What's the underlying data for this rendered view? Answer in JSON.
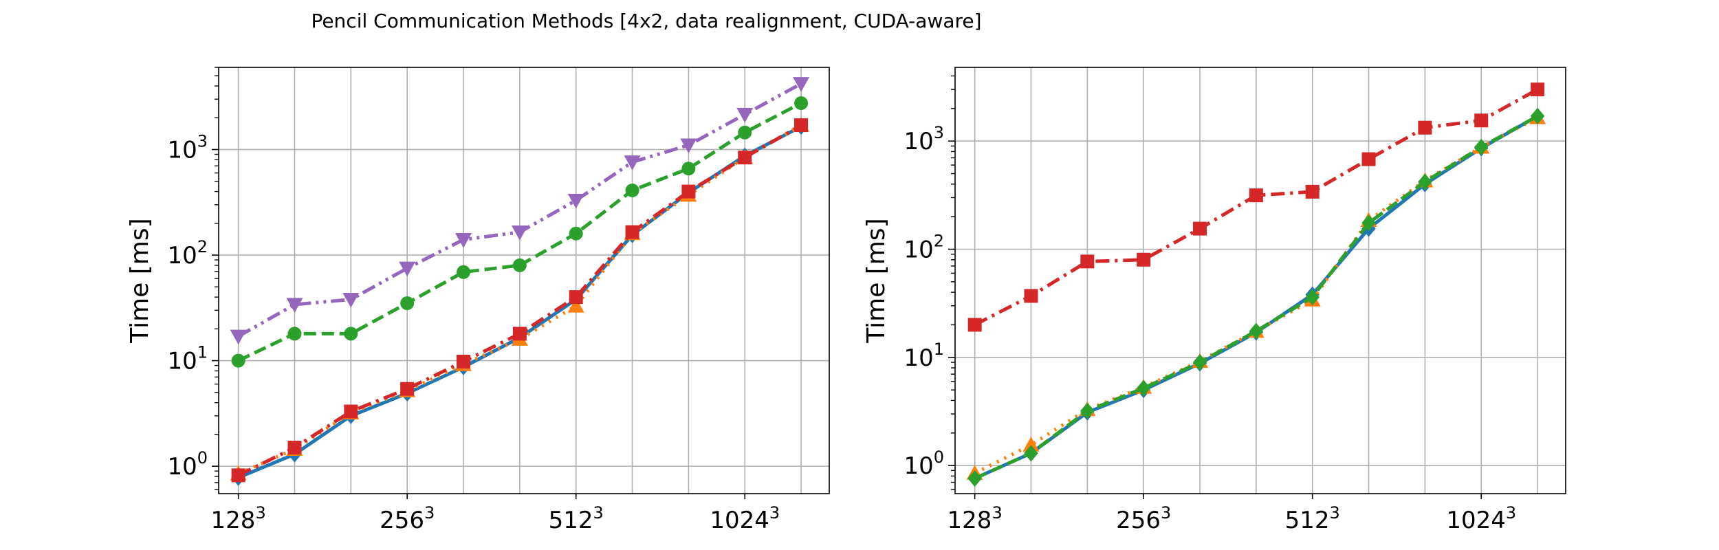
{
  "figure": {
    "title": "Pencil Communication Methods [4x2, data realignment, CUDA-aware]"
  },
  "chart_data": [
    {
      "type": "line",
      "title": "",
      "xlabel": "",
      "ylabel": "Time [ms]",
      "yscale": "log",
      "ylim": [
        0.55,
        6000
      ],
      "xlim": [
        -0.35,
        10.5
      ],
      "grid": true,
      "legend": "none",
      "x_ticks": [
        {
          "pos": 0,
          "base": "128",
          "exp": "3"
        },
        {
          "pos": 3,
          "base": "256",
          "exp": "3"
        },
        {
          "pos": 6,
          "base": "512",
          "exp": "3"
        },
        {
          "pos": 9,
          "base": "1024",
          "exp": "3"
        }
      ],
      "x_grid": [
        0,
        1,
        2,
        3,
        4,
        5,
        6,
        7,
        8,
        9,
        10
      ],
      "y_ticks": [
        {
          "value": 1,
          "base": "10",
          "exp": "0"
        },
        {
          "value": 10,
          "base": "10",
          "exp": "1"
        },
        {
          "value": 100,
          "base": "10",
          "exp": "2"
        },
        {
          "value": 1000,
          "base": "10",
          "exp": "3"
        }
      ],
      "x": [
        0,
        1,
        2,
        3,
        4,
        5,
        6,
        7,
        8,
        9,
        10
      ],
      "series": [
        {
          "color": "#1f77b4",
          "dash": "solid",
          "marker": "diamond",
          "values": [
            0.78,
            1.3,
            3.0,
            4.9,
            8.7,
            16.5,
            38,
            155,
            390,
            870,
            1650
          ]
        },
        {
          "color": "#ff7f0e",
          "dash": "dotted",
          "marker": "triangle-up",
          "values": [
            0.85,
            1.45,
            3.2,
            5.2,
            9.2,
            16.0,
            33,
            160,
            370,
            840,
            1700
          ]
        },
        {
          "color": "#2ca02c",
          "dash": "dashed",
          "marker": "circle",
          "values": [
            10,
            18,
            18,
            35,
            69,
            80,
            160,
            410,
            660,
            1450,
            2750
          ]
        },
        {
          "color": "#d62728",
          "dash": "dashdot",
          "marker": "square",
          "values": [
            0.82,
            1.5,
            3.3,
            5.4,
            9.8,
            18,
            40,
            165,
            400,
            840,
            1700
          ]
        },
        {
          "color": "#9467bd",
          "dash": "dashdotdot",
          "marker": "triangle-down",
          "values": [
            17,
            34,
            38,
            75,
            140,
            165,
            330,
            760,
            1100,
            2150,
            4200
          ]
        }
      ]
    },
    {
      "type": "line",
      "title": "",
      "xlabel": "",
      "ylabel": "Time [ms]",
      "yscale": "log",
      "ylim": [
        0.55,
        4800
      ],
      "xlim": [
        -0.35,
        10.5
      ],
      "grid": true,
      "legend": "none",
      "x_ticks": [
        {
          "pos": 0,
          "base": "128",
          "exp": "3"
        },
        {
          "pos": 3,
          "base": "256",
          "exp": "3"
        },
        {
          "pos": 6,
          "base": "512",
          "exp": "3"
        },
        {
          "pos": 9,
          "base": "1024",
          "exp": "3"
        }
      ],
      "x_grid": [
        0,
        1,
        2,
        3,
        4,
        5,
        6,
        7,
        8,
        9,
        10
      ],
      "y_ticks": [
        {
          "value": 1,
          "base": "10",
          "exp": "0"
        },
        {
          "value": 10,
          "base": "10",
          "exp": "1"
        },
        {
          "value": 100,
          "base": "10",
          "exp": "2"
        },
        {
          "value": 1000,
          "base": "10",
          "exp": "3"
        }
      ],
      "x": [
        0,
        1,
        2,
        3,
        4,
        5,
        6,
        7,
        8,
        9,
        10
      ],
      "series": [
        {
          "color": "#1f77b4",
          "dash": "solid",
          "marker": "diamond",
          "values": [
            0.76,
            1.3,
            3.1,
            5.0,
            8.8,
            17,
            38,
            155,
            400,
            860,
            1700
          ]
        },
        {
          "color": "#ff7f0e",
          "dash": "dotted",
          "marker": "triangle-up",
          "values": [
            0.85,
            1.55,
            3.3,
            5.3,
            9.2,
            17.5,
            34,
            185,
            430,
            880,
            1650
          ]
        },
        {
          "color": "#2ca02c",
          "dash": "dashed",
          "marker": "diamond",
          "values": [
            0.76,
            1.3,
            3.2,
            5.2,
            9.0,
            17.5,
            36,
            175,
            420,
            880,
            1700
          ]
        },
        {
          "color": "#d62728",
          "dash": "dashdot",
          "marker": "square",
          "values": [
            20,
            37,
            77,
            80,
            155,
            315,
            340,
            680,
            1330,
            1550,
            3000
          ]
        }
      ]
    }
  ]
}
